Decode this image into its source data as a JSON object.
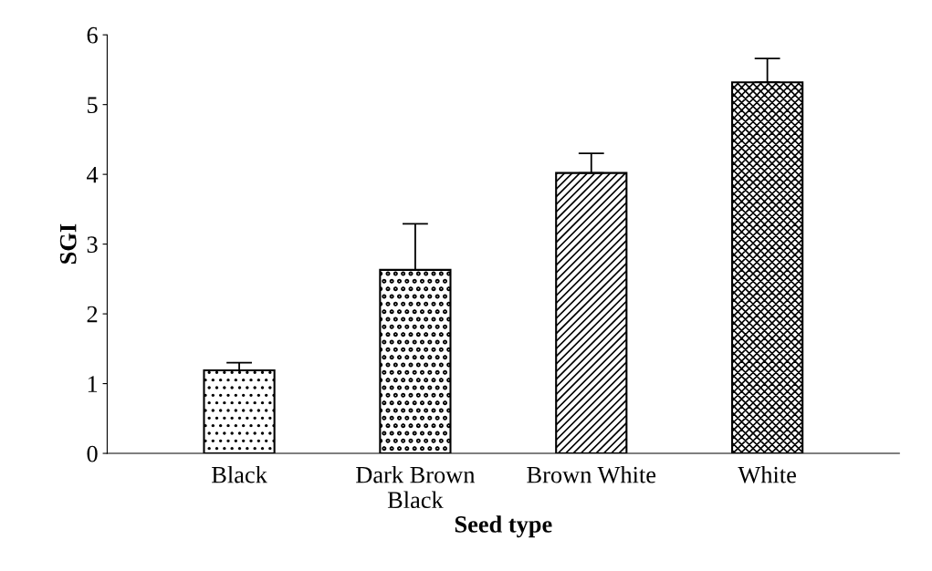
{
  "chart_data": {
    "type": "bar",
    "xlabel": "Seed type",
    "ylabel": "SGI",
    "categories": [
      "Black",
      "Dark Brown\nBlack",
      "Brown White",
      "White"
    ],
    "values": [
      1.19,
      2.63,
      4.02,
      5.32
    ],
    "errors": [
      [
        1.19,
        1.3
      ],
      [
        2.63,
        3.29
      ],
      [
        4.02,
        4.3
      ],
      [
        5.32,
        5.66
      ]
    ],
    "color": "#000000",
    "ylim": [
      0,
      6
    ],
    "yticks": [
      0,
      1,
      2,
      3,
      4,
      5,
      6
    ],
    "grid": false,
    "legend": false
  }
}
